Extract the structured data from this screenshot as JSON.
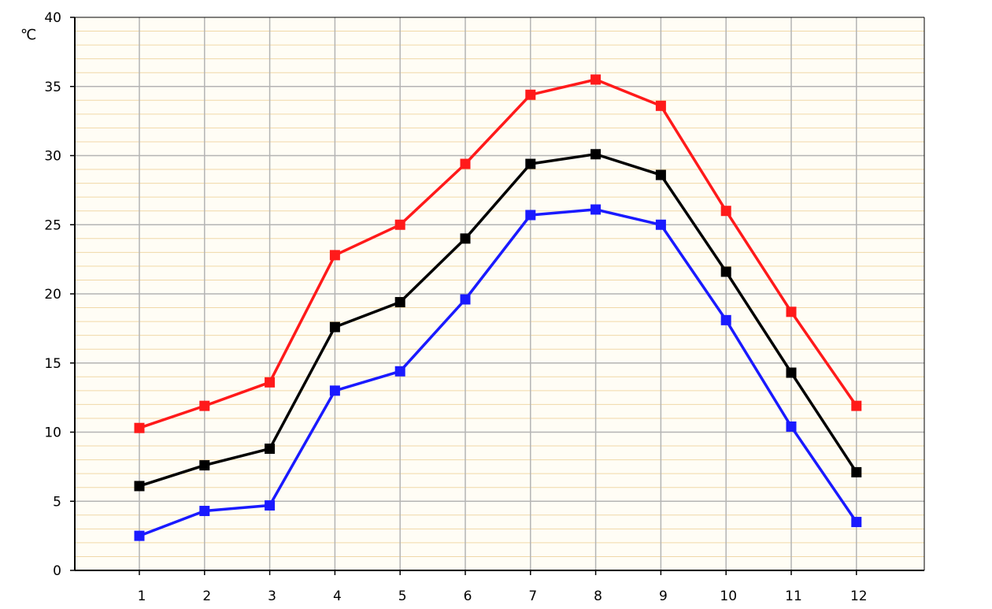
{
  "chart_data": {
    "type": "line",
    "title": "",
    "xlabel": "",
    "ylabel": "℃",
    "ylim": [
      0,
      40
    ],
    "yticks": [
      0,
      5,
      10,
      15,
      20,
      25,
      30,
      35,
      40
    ],
    "categories": [
      "1",
      "2",
      "3",
      "4",
      "5",
      "6",
      "7",
      "8",
      "9",
      "10",
      "11",
      "12"
    ],
    "grid": true,
    "legend": "none",
    "colors": {
      "background": "#fffdf5",
      "minor_grid": "#f0d8a8",
      "major_grid": "#b4b4b4",
      "axis": "#000000"
    },
    "series": [
      {
        "color": "#ff1a1a",
        "values": [
          10.3,
          11.9,
          13.6,
          22.8,
          25.0,
          29.4,
          34.4,
          35.5,
          33.6,
          26.0,
          18.7,
          11.9
        ]
      },
      {
        "color": "#000000",
        "values": [
          6.1,
          7.6,
          8.8,
          17.6,
          19.4,
          24.0,
          29.4,
          30.1,
          28.6,
          21.6,
          14.3,
          7.1
        ]
      },
      {
        "color": "#1a1aff",
        "values": [
          2.5,
          4.3,
          4.7,
          13.0,
          14.4,
          19.6,
          25.7,
          26.1,
          25.0,
          18.1,
          10.4,
          3.5
        ]
      }
    ]
  }
}
